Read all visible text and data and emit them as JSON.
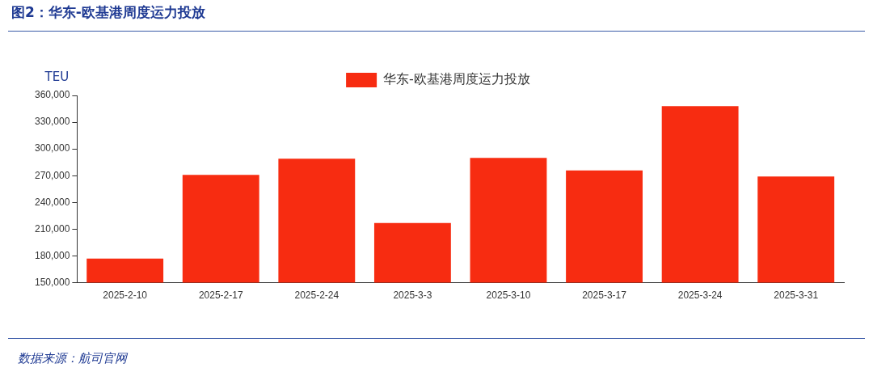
{
  "chart_data": {
    "type": "bar",
    "title": "图2：华东-欧基港周度运力投放",
    "ylabel": "TEU",
    "categories": [
      "2025-2-10",
      "2025-2-17",
      "2025-2-24",
      "2025-3-3",
      "2025-3-10",
      "2025-3-17",
      "2025-3-24",
      "2025-3-31"
    ],
    "series": [
      {
        "name": "华东-欧基港周度运力投放",
        "color": "#f72c11",
        "values": [
          177000,
          271000,
          289000,
          217000,
          290000,
          276000,
          348000,
          269000
        ]
      }
    ],
    "ylim": [
      150000,
      360000
    ],
    "yticks": [
      {
        "value": 150000,
        "label": "150,000"
      },
      {
        "value": 180000,
        "label": "180,000"
      },
      {
        "value": 210000,
        "label": "210,000"
      },
      {
        "value": 240000,
        "label": "240,000"
      },
      {
        "value": 270000,
        "label": "270,000"
      },
      {
        "value": 300000,
        "label": "300,000"
      },
      {
        "value": 330000,
        "label": "330,000"
      },
      {
        "value": 360000,
        "label": "360,000"
      }
    ],
    "grid": false,
    "legend": "top",
    "annotations": [
      "数据来源：航司官网"
    ]
  }
}
